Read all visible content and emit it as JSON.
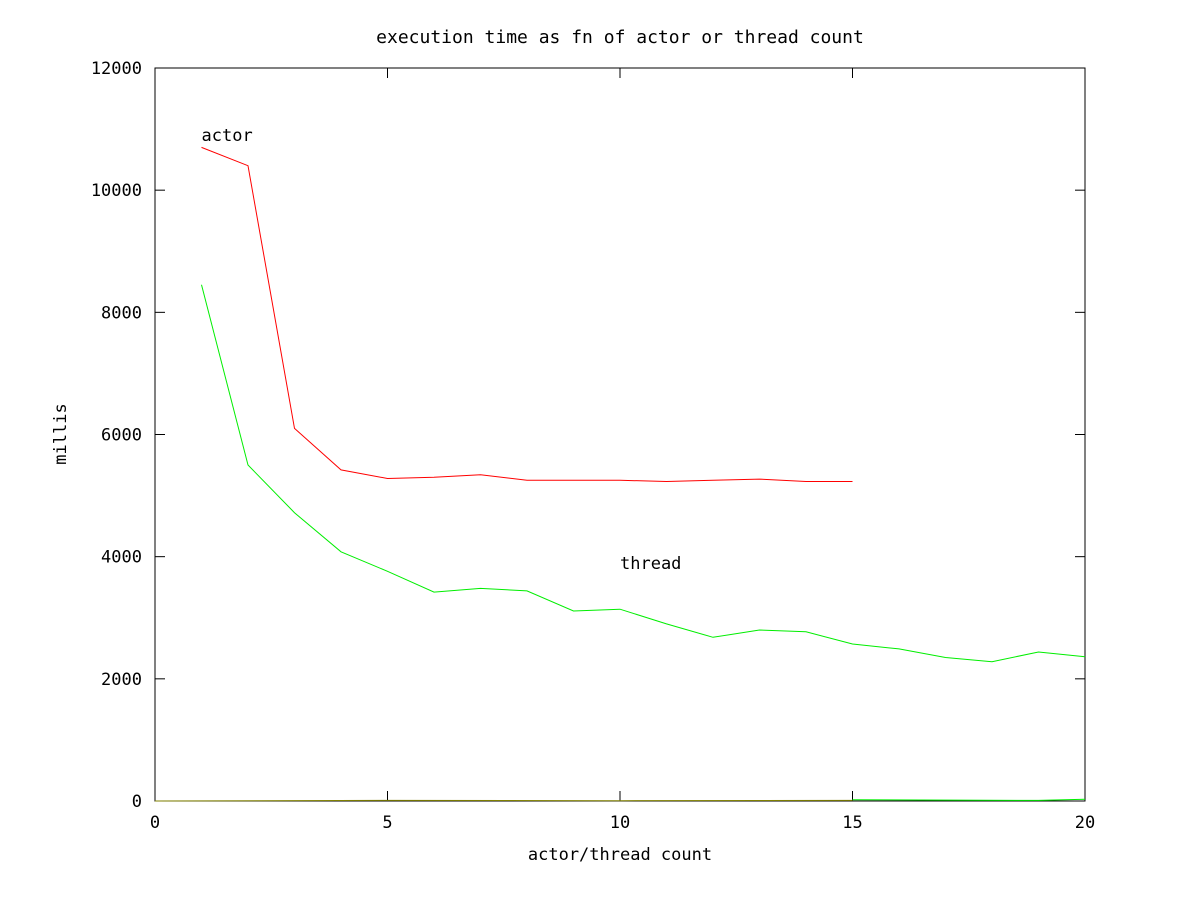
{
  "chart_data": {
    "type": "line",
    "title": "execution time as fn of actor or thread count",
    "xlabel": "actor/thread count",
    "ylabel": "millis",
    "xlim": [
      0,
      20
    ],
    "ylim": [
      0,
      12000
    ],
    "xticks": [
      0,
      5,
      10,
      15,
      20
    ],
    "yticks": [
      0,
      2000,
      4000,
      6000,
      8000,
      10000,
      12000
    ],
    "grid": false,
    "series": [
      {
        "name": "actor",
        "color": "#ff0000",
        "x": [
          1,
          2,
          3,
          4,
          5,
          6,
          7,
          8,
          9,
          10,
          11,
          12,
          13,
          14,
          15
        ],
        "values": [
          10700,
          10400,
          6100,
          5420,
          5280,
          5300,
          5340,
          5250,
          5250,
          5250,
          5230,
          5250,
          5270,
          5230,
          5230
        ]
      },
      {
        "name": "thread",
        "color": "#00ee00",
        "x": [
          1,
          2,
          3,
          4,
          5,
          6,
          7,
          8,
          9,
          10,
          11,
          12,
          13,
          14,
          15,
          16,
          17,
          18,
          19,
          20
        ],
        "values": [
          8450,
          5500,
          4720,
          4080,
          3760,
          3420,
          3480,
          3440,
          3110,
          3140,
          2900,
          2680,
          2800,
          2770,
          2570,
          2490,
          2350,
          2280,
          2440,
          2360
        ]
      },
      {
        "color": "#808000",
        "x": [
          0,
          5,
          10,
          15
        ],
        "values": [
          0,
          10,
          5,
          10
        ]
      },
      {
        "color": "#00ee00",
        "x": [
          15,
          19,
          20
        ],
        "values": [
          20,
          10,
          30
        ]
      }
    ],
    "annotations": [
      {
        "text": "actor",
        "x": 1,
        "y": 10900
      },
      {
        "text": "thread",
        "x": 10,
        "y": 3900
      }
    ]
  }
}
